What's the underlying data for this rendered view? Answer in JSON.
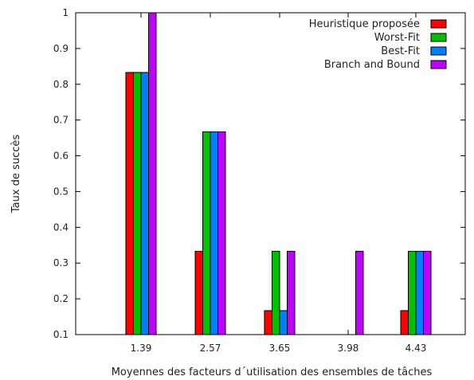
{
  "chart_data": {
    "type": "bar",
    "title": "",
    "xlabel": "Moyennes des facteurs d´utilisation des ensembles de tâches",
    "ylabel": "Taux de succès",
    "categories": [
      "1.39",
      "2.57",
      "3.65",
      "3.98",
      "4.43"
    ],
    "ylim": [
      0.1,
      1
    ],
    "yticks": [
      "0.1",
      "0.2",
      "0.3",
      "0.4",
      "0.5",
      "0.6",
      "0.7",
      "0.8",
      "0.9",
      "1"
    ],
    "grid": false,
    "legend_position": "top-right",
    "series": [
      {
        "name": "Heuristique proposée",
        "color": "#ff0000",
        "values": [
          0.833,
          0.333,
          0.167,
          0.1,
          0.167
        ]
      },
      {
        "name": "Worst-Fit",
        "color": "#00c000",
        "values": [
          0.833,
          0.667,
          0.333,
          0.1,
          0.333
        ]
      },
      {
        "name": "Best-Fit",
        "color": "#0080ff",
        "values": [
          0.833,
          0.667,
          0.167,
          0.1,
          0.333
        ]
      },
      {
        "name": "Branch and Bound",
        "color": "#c000ff",
        "values": [
          1.0,
          0.667,
          0.333,
          0.333,
          0.333
        ]
      }
    ]
  }
}
